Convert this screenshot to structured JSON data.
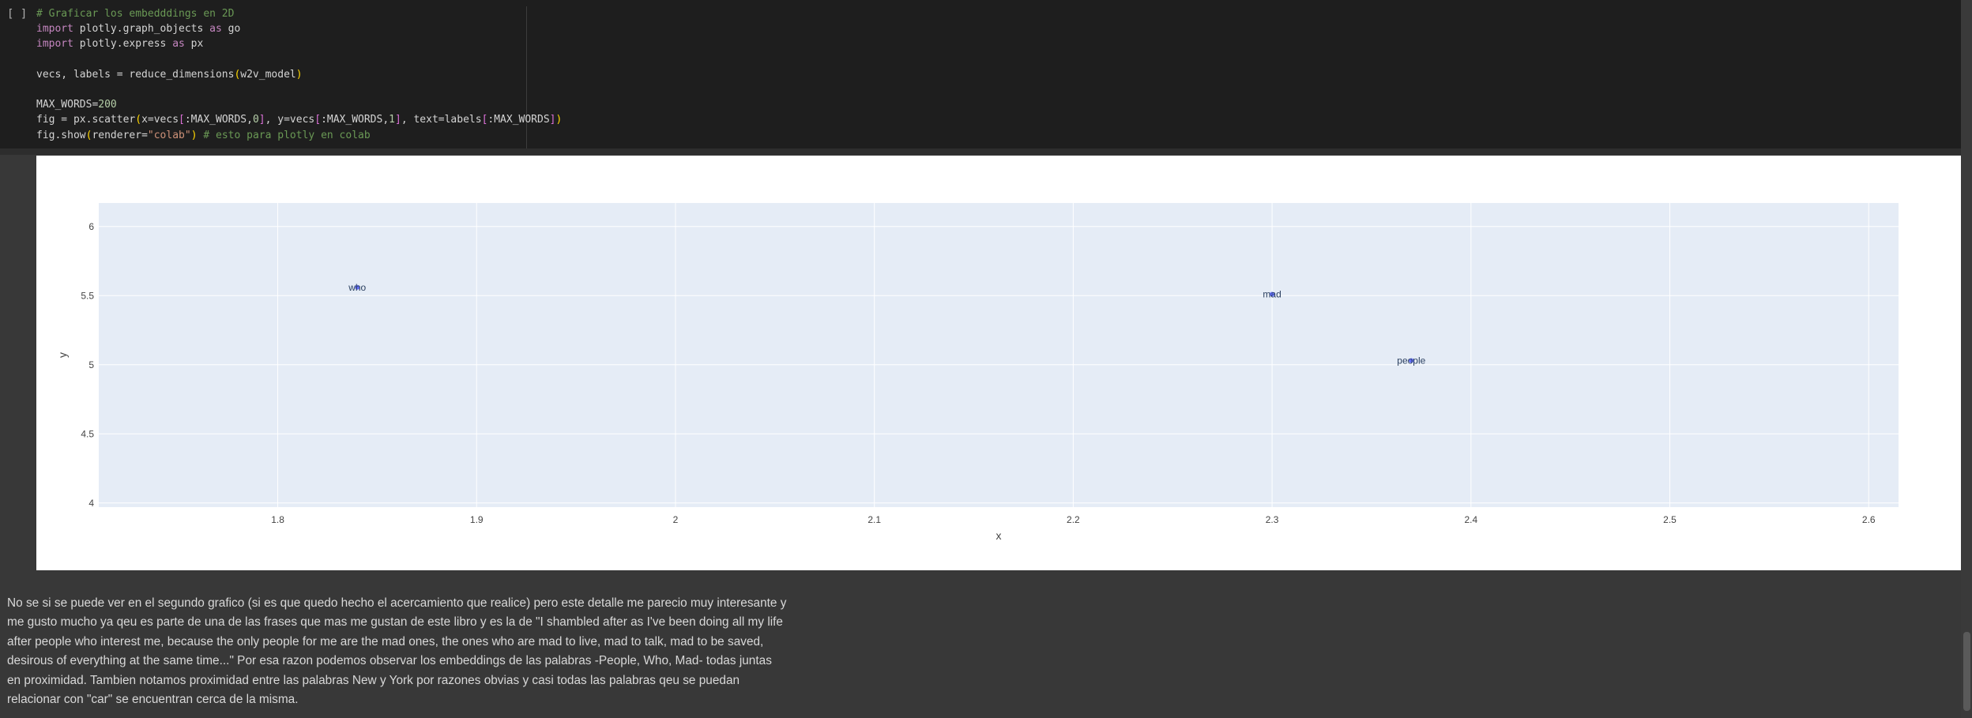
{
  "cell": {
    "bracket": "[ ]",
    "code": [
      [
        {
          "t": "# Graficar los embedddings en 2D",
          "c": "tok-comment"
        }
      ],
      [
        {
          "t": "import",
          "c": "tok-kw"
        },
        {
          "t": " plotly.graph_objects "
        },
        {
          "t": "as",
          "c": "tok-kw"
        },
        {
          "t": " go"
        }
      ],
      [
        {
          "t": "import",
          "c": "tok-kw"
        },
        {
          "t": " plotly.express "
        },
        {
          "t": "as",
          "c": "tok-kw"
        },
        {
          "t": " px"
        }
      ],
      [],
      [
        {
          "t": "vecs, labels = reduce_dimensions"
        },
        {
          "t": "(",
          "c": "tok-br"
        },
        {
          "t": "w2v_model"
        },
        {
          "t": ")",
          "c": "tok-br"
        }
      ],
      [],
      [
        {
          "t": "MAX_WORDS="
        },
        {
          "t": "200",
          "c": "tok-num"
        }
      ],
      [
        {
          "t": "fig = px.scatter"
        },
        {
          "t": "(",
          "c": "tok-br"
        },
        {
          "t": "x=vecs"
        },
        {
          "t": "[",
          "c": "tok-br2"
        },
        {
          "t": ":MAX_WORDS,"
        },
        {
          "t": "0",
          "c": "tok-num"
        },
        {
          "t": "]",
          "c": "tok-br2"
        },
        {
          "t": ", y=vecs"
        },
        {
          "t": "[",
          "c": "tok-br2"
        },
        {
          "t": ":MAX_WORDS,"
        },
        {
          "t": "1",
          "c": "tok-num"
        },
        {
          "t": "]",
          "c": "tok-br2"
        },
        {
          "t": ", text=labels"
        },
        {
          "t": "[",
          "c": "tok-br2"
        },
        {
          "t": ":MAX_WORDS"
        },
        {
          "t": "]",
          "c": "tok-br2"
        },
        {
          "t": ")",
          "c": "tok-br"
        }
      ],
      [
        {
          "t": "fig.show"
        },
        {
          "t": "(",
          "c": "tok-br"
        },
        {
          "t": "renderer="
        },
        {
          "t": "\"colab\"",
          "c": "tok-str"
        },
        {
          "t": ")",
          "c": "tok-br"
        },
        {
          "t": " "
        },
        {
          "t": "# esto para plotly en colab",
          "c": "tok-comment"
        }
      ]
    ]
  },
  "chart_data": {
    "type": "scatter",
    "xlabel": "x",
    "ylabel": "y",
    "xlim": [
      1.71,
      2.615
    ],
    "ylim": [
      3.97,
      6.17
    ],
    "x_ticks": [
      1.8,
      1.9,
      2,
      2.1,
      2.2,
      2.3,
      2.4,
      2.5,
      2.6
    ],
    "x_tick_labels": [
      "1.8",
      "1.9",
      "2",
      "2.1",
      "2.2",
      "2.3",
      "2.4",
      "2.5",
      "2.6"
    ],
    "y_ticks": [
      4,
      4.5,
      5,
      5.5,
      6
    ],
    "y_tick_labels": [
      "4",
      "4.5",
      "5",
      "5.5",
      "6"
    ],
    "points": [
      {
        "x": 1.84,
        "y": 5.56,
        "text": "who"
      },
      {
        "x": 2.3,
        "y": 5.51,
        "text": "mad"
      },
      {
        "x": 2.37,
        "y": 5.03,
        "text": "people"
      }
    ],
    "grid": true,
    "colors": {
      "plot_bg": "#e5ecf6",
      "marker": "#636efa",
      "grid": "#ffffff"
    }
  },
  "markdown": [
    "No se si se puede ver en el segundo grafico (si es que quedo hecho el acercamiento que realice) pero este detalle me parecio muy interesante y",
    "me gusto mucho ya qeu es parte de una de las frases que mas me gustan de este libro y es la de \"I shambled after as I've been doing all my life",
    "after people who interest me, because the only people for me are the mad ones, the ones who are mad to live, mad to talk, mad to be saved,",
    "desirous of everything at the same time...\" Por esa razon podemos observar los embeddings de las palabras -People, Who, Mad- todas juntas",
    "en proximidad. Tambien notamos proximidad entre las palabras New y York por razones obvias y casi todas las palabras qeu se puedan",
    "relacionar con \"car\" se encuentran cerca de la misma."
  ]
}
